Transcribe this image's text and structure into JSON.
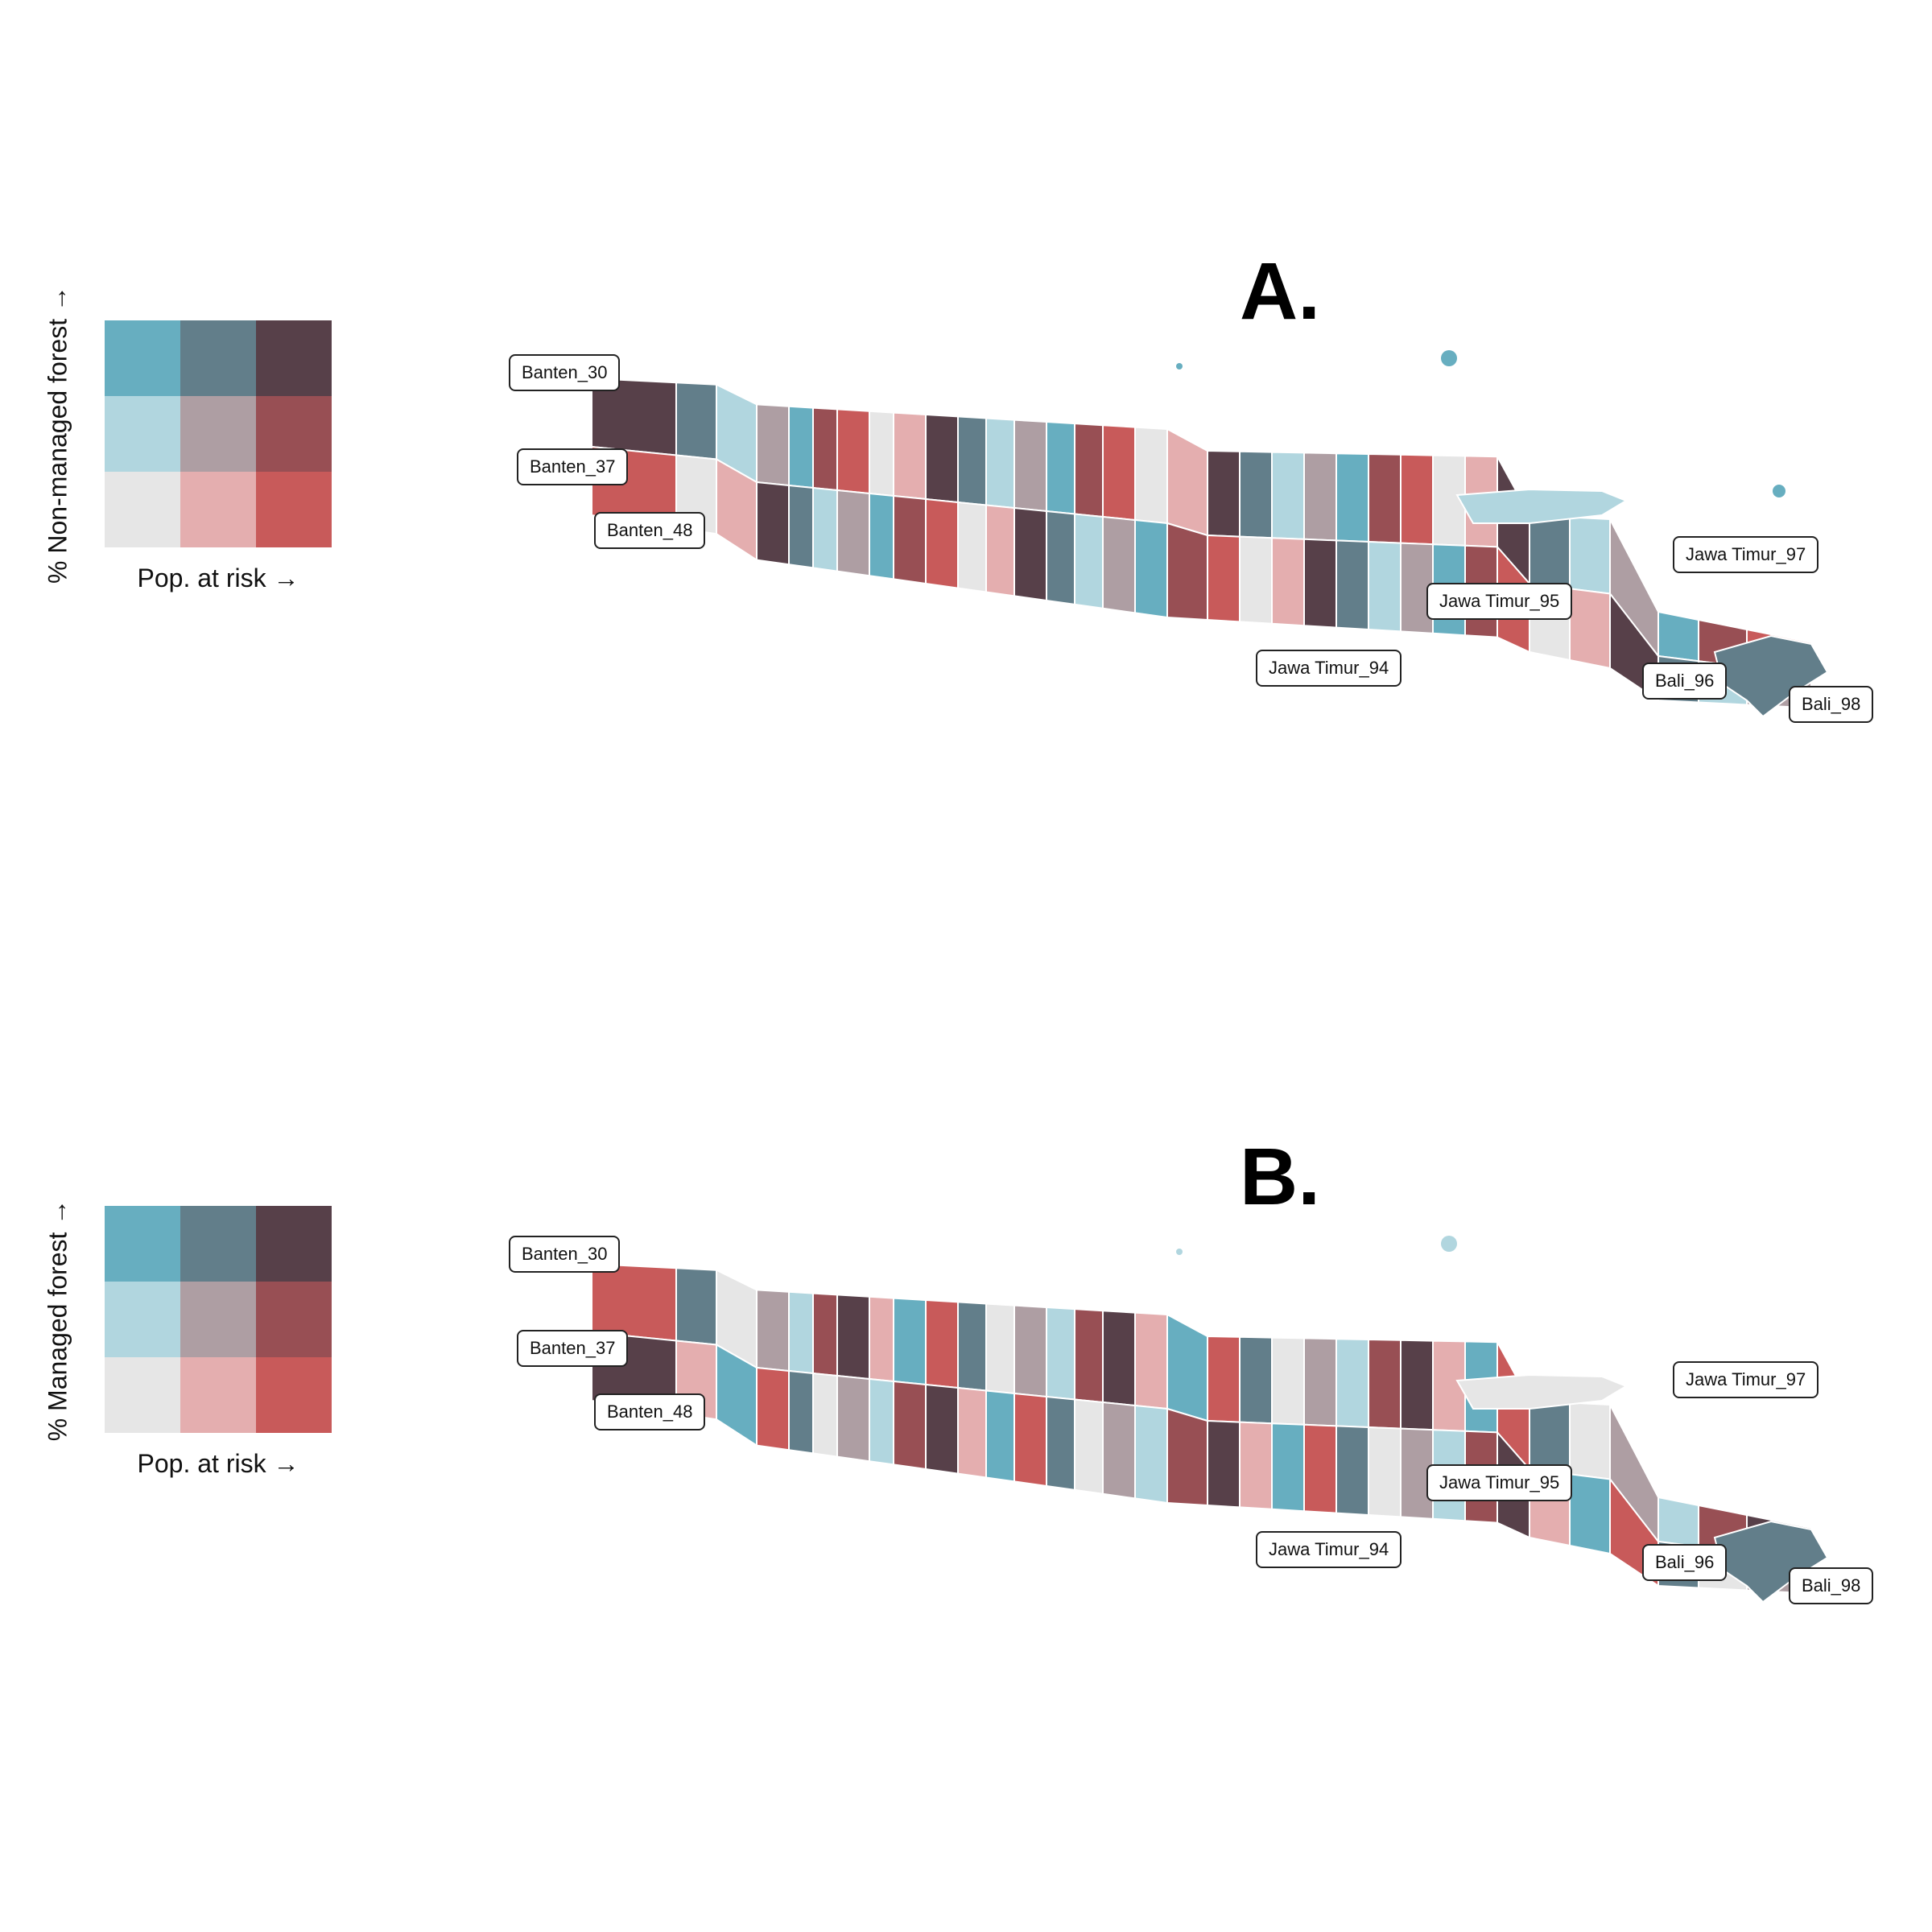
{
  "legend_colors": [
    [
      "#67aec0",
      "#627e8a",
      "#574049"
    ],
    [
      "#b1d6df",
      "#ae9ea3",
      "#984f54"
    ],
    [
      "#e6e6e6",
      "#e4aeaf",
      "#c85a5a"
    ]
  ],
  "panels": [
    {
      "letter": "A.",
      "ylabel": "% Non-managed forest  →",
      "xlabel": "Pop. at risk  →",
      "region_colors": [
        "#574049",
        "#984f54",
        "#627e8a",
        "#c85a5a",
        "#b1d6df",
        "#e6e6e6",
        "#ae9ea3",
        "#e4aeaf",
        "#67aec0"
      ],
      "labels": [
        "Banten_30",
        "Banten_37",
        "Banten_48",
        "Jawa Timur_97",
        "Jawa Timur_95",
        "Jawa Timur_94",
        "Bali_96",
        "Bali_98"
      ]
    },
    {
      "letter": "B.",
      "ylabel": "% Managed forest  →",
      "xlabel": "Pop. at risk  →",
      "region_colors": [
        "#c85a5a",
        "#984f54",
        "#627e8a",
        "#574049",
        "#e6e6e6",
        "#e4aeaf",
        "#ae9ea3",
        "#67aec0",
        "#b1d6df"
      ],
      "labels": [
        "Banten_30",
        "Banten_37",
        "Banten_48",
        "Jawa Timur_97",
        "Jawa Timur_95",
        "Jawa Timur_94",
        "Bali_96",
        "Bali_98"
      ]
    }
  ]
}
